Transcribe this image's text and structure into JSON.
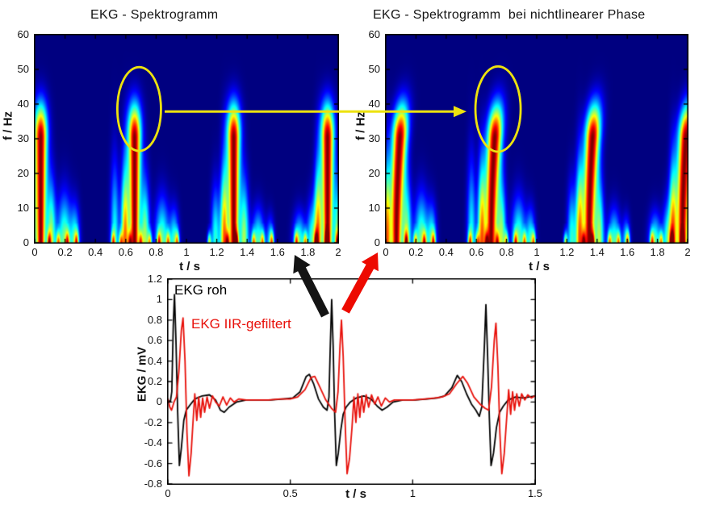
{
  "colors": {
    "highlight_yellow": "#EDE20E",
    "arrow_black": "#141414",
    "arrow_red": "#ED0A00",
    "series_black": "#000000",
    "series_red": "#E8100A",
    "spectrogram_background": "#00008C",
    "axis": "#000000"
  },
  "chart_data": [
    {
      "id": "spectrogram_left",
      "type": "heatmap",
      "title": "EKG - Spektrogramm",
      "xlabel": "t / s",
      "ylabel": "f / Hz",
      "xlim": [
        0,
        2
      ],
      "ylim": [
        0,
        60
      ],
      "xticks": [
        "0",
        "0.2",
        "0.4",
        "0.6",
        "0.8",
        "1",
        "1.2",
        "1.4",
        "1.6",
        "1.8",
        "2"
      ],
      "yticks": [
        "0",
        "10",
        "20",
        "30",
        "40",
        "50",
        "60"
      ],
      "colormap": "jet",
      "bend": 0,
      "core_width_scale": 1,
      "pulses": [
        {
          "t": 0.045,
          "amp": 1.0
        },
        {
          "t": 0.66,
          "amp": 1.0
        },
        {
          "t": 1.31,
          "amp": 1.0
        },
        {
          "t": 1.925,
          "amp": 1.0
        }
      ],
      "blobs": [
        {
          "t": 0.2,
          "w": 0.045,
          "f": 13,
          "a": 0.5
        },
        {
          "t": 0.27,
          "w": 0.03,
          "f": 10,
          "a": 0.42
        },
        {
          "t": 0.53,
          "w": 0.028,
          "f": 22,
          "a": 0.4
        },
        {
          "t": 0.84,
          "w": 0.045,
          "f": 12,
          "a": 0.48
        },
        {
          "t": 0.92,
          "w": 0.03,
          "f": 9,
          "a": 0.42
        },
        {
          "t": 1.19,
          "w": 0.028,
          "f": 15,
          "a": 0.42
        },
        {
          "t": 1.47,
          "w": 0.04,
          "f": 9,
          "a": 0.45
        },
        {
          "t": 1.55,
          "w": 0.025,
          "f": 7,
          "a": 0.35
        },
        {
          "t": 1.74,
          "w": 0.04,
          "f": 8,
          "a": 0.45
        },
        {
          "t": 1.82,
          "w": 0.03,
          "f": 11,
          "a": 0.4
        }
      ],
      "grass": [
        0.1,
        0.16,
        0.22,
        0.28,
        0.52,
        0.57,
        0.63,
        0.7,
        0.76,
        0.82,
        0.88,
        0.94,
        1.15,
        1.27,
        1.33,
        1.44,
        1.5,
        1.56,
        1.72,
        1.78,
        1.85,
        1.92,
        1.99
      ]
    },
    {
      "id": "spectrogram_right",
      "type": "heatmap",
      "title": "EKG - Spektrogramm  bei nichtlinearer Phase",
      "xlabel": "t / s",
      "ylabel": "f / Hz",
      "xlim": [
        0,
        2
      ],
      "ylim": [
        0,
        60
      ],
      "xticks": [
        "0",
        "0.2",
        "0.4",
        "0.6",
        "0.8",
        "1",
        "1.2",
        "1.4",
        "1.6",
        "1.8",
        "2"
      ],
      "yticks": [
        "0",
        "10",
        "20",
        "30",
        "40",
        "50",
        "60"
      ],
      "colormap": "jet",
      "bend": 0.05,
      "core_width_scale": 1.15,
      "pulses": [
        {
          "t": 0.075,
          "amp": 1.0
        },
        {
          "t": 0.7,
          "amp": 1.0
        },
        {
          "t": 1.345,
          "amp": 1.0
        },
        {
          "t": 1.96,
          "amp": 1.0
        }
      ],
      "blobs": [
        {
          "t": 0.24,
          "w": 0.045,
          "f": 13,
          "a": 0.5
        },
        {
          "t": 0.31,
          "w": 0.03,
          "f": 10,
          "a": 0.42
        },
        {
          "t": 0.57,
          "w": 0.028,
          "f": 22,
          "a": 0.4
        },
        {
          "t": 0.88,
          "w": 0.045,
          "f": 12,
          "a": 0.48
        },
        {
          "t": 0.96,
          "w": 0.03,
          "f": 9,
          "a": 0.42
        },
        {
          "t": 1.23,
          "w": 0.028,
          "f": 15,
          "a": 0.42
        },
        {
          "t": 1.51,
          "w": 0.04,
          "f": 9,
          "a": 0.45
        },
        {
          "t": 1.59,
          "w": 0.025,
          "f": 7,
          "a": 0.35
        },
        {
          "t": 1.78,
          "w": 0.04,
          "f": 8,
          "a": 0.45
        },
        {
          "t": 1.86,
          "w": 0.03,
          "f": 11,
          "a": 0.4
        }
      ],
      "grass": [
        0.14,
        0.2,
        0.26,
        0.32,
        0.56,
        0.61,
        0.67,
        0.74,
        0.8,
        0.86,
        0.92,
        0.98,
        1.19,
        1.31,
        1.37,
        1.48,
        1.54,
        1.6,
        1.76,
        1.82,
        1.89,
        1.96
      ]
    },
    {
      "id": "ekg_waveforms",
      "type": "line",
      "title": "",
      "xlabel": "t / s",
      "ylabel": "EKG / mV",
      "xlim": [
        0,
        1.5
      ],
      "ylim": [
        -0.8,
        1.2
      ],
      "xticks": [
        "0",
        "0.5",
        "1",
        "1.5"
      ],
      "yticks": [
        "-0.8",
        "-0.6",
        "-0.4",
        "-0.2",
        "0",
        "0.2",
        "0.4",
        "0.6",
        "0.8",
        "1",
        "1.2"
      ],
      "series": [
        {
          "name": "EKG roh",
          "color": "#000000",
          "points": [
            [
              0.0,
              0.02
            ],
            [
              0.01,
              0.0
            ],
            [
              0.016,
              0.1
            ],
            [
              0.022,
              0.75
            ],
            [
              0.027,
              1.05
            ],
            [
              0.033,
              0.6
            ],
            [
              0.04,
              -0.1
            ],
            [
              0.047,
              -0.62
            ],
            [
              0.055,
              -0.45
            ],
            [
              0.065,
              -0.18
            ],
            [
              0.075,
              -0.08
            ],
            [
              0.09,
              -0.03
            ],
            [
              0.11,
              0.03
            ],
            [
              0.14,
              0.06
            ],
            [
              0.17,
              0.07
            ],
            [
              0.195,
              0.02
            ],
            [
              0.215,
              -0.08
            ],
            [
              0.23,
              -0.1
            ],
            [
              0.25,
              -0.05
            ],
            [
              0.28,
              0.0
            ],
            [
              0.32,
              0.02
            ],
            [
              0.37,
              0.02
            ],
            [
              0.42,
              0.02
            ],
            [
              0.47,
              0.03
            ],
            [
              0.51,
              0.04
            ],
            [
              0.54,
              0.1
            ],
            [
              0.565,
              0.25
            ],
            [
              0.578,
              0.27
            ],
            [
              0.595,
              0.18
            ],
            [
              0.615,
              0.03
            ],
            [
              0.635,
              -0.05
            ],
            [
              0.65,
              -0.08
            ],
            [
              0.658,
              0.05
            ],
            [
              0.664,
              0.6
            ],
            [
              0.669,
              1.0
            ],
            [
              0.675,
              0.55
            ],
            [
              0.681,
              -0.1
            ],
            [
              0.688,
              -0.62
            ],
            [
              0.696,
              -0.5
            ],
            [
              0.706,
              -0.28
            ],
            [
              0.716,
              -0.12
            ],
            [
              0.728,
              -0.05
            ],
            [
              0.745,
              0.0
            ],
            [
              0.77,
              0.04
            ],
            [
              0.8,
              0.06
            ],
            [
              0.83,
              0.03
            ],
            [
              0.855,
              -0.04
            ],
            [
              0.875,
              -0.08
            ],
            [
              0.895,
              -0.05
            ],
            [
              0.92,
              0.0
            ],
            [
              0.96,
              0.02
            ],
            [
              1.01,
              0.02
            ],
            [
              1.06,
              0.03
            ],
            [
              1.1,
              0.04
            ],
            [
              1.13,
              0.06
            ],
            [
              1.16,
              0.14
            ],
            [
              1.182,
              0.26
            ],
            [
              1.2,
              0.2
            ],
            [
              1.22,
              0.08
            ],
            [
              1.24,
              -0.02
            ],
            [
              1.258,
              -0.08
            ],
            [
              1.272,
              -0.14
            ],
            [
              1.282,
              -0.05
            ],
            [
              1.292,
              0.5
            ],
            [
              1.299,
              0.95
            ],
            [
              1.306,
              0.45
            ],
            [
              1.313,
              -0.15
            ],
            [
              1.32,
              -0.62
            ],
            [
              1.33,
              -0.5
            ],
            [
              1.342,
              -0.25
            ],
            [
              1.355,
              -0.1
            ],
            [
              1.37,
              -0.04
            ],
            [
              1.39,
              0.02
            ],
            [
              1.42,
              0.05
            ],
            [
              1.45,
              0.04
            ],
            [
              1.475,
              0.05
            ],
            [
              1.5,
              0.06
            ]
          ]
        },
        {
          "name": "EKG IIR-gefiltert",
          "color": "#E8100A",
          "points": [
            [
              0.0,
              0.03
            ],
            [
              0.008,
              -0.05
            ],
            [
              0.015,
              -0.08
            ],
            [
              0.025,
              0.0
            ],
            [
              0.035,
              0.05
            ],
            [
              0.045,
              0.3
            ],
            [
              0.055,
              0.7
            ],
            [
              0.062,
              0.82
            ],
            [
              0.07,
              0.4
            ],
            [
              0.078,
              -0.3
            ],
            [
              0.086,
              -0.72
            ],
            [
              0.095,
              -0.5
            ],
            [
              0.103,
              -0.18
            ],
            [
              0.11,
              0.08
            ],
            [
              0.118,
              -0.18
            ],
            [
              0.126,
              0.05
            ],
            [
              0.134,
              -0.15
            ],
            [
              0.142,
              0.04
            ],
            [
              0.15,
              -0.1
            ],
            [
              0.16,
              0.05
            ],
            [
              0.17,
              -0.06
            ],
            [
              0.182,
              0.06
            ],
            [
              0.195,
              0.0
            ],
            [
              0.21,
              -0.04
            ],
            [
              0.225,
              0.05
            ],
            [
              0.24,
              -0.03
            ],
            [
              0.255,
              0.04
            ],
            [
              0.27,
              0.0
            ],
            [
              0.29,
              0.03
            ],
            [
              0.32,
              0.02
            ],
            [
              0.36,
              0.02
            ],
            [
              0.41,
              0.02
            ],
            [
              0.46,
              0.03
            ],
            [
              0.5,
              0.03
            ],
            [
              0.53,
              0.05
            ],
            [
              0.56,
              0.12
            ],
            [
              0.585,
              0.24
            ],
            [
              0.6,
              0.25
            ],
            [
              0.62,
              0.15
            ],
            [
              0.645,
              0.02
            ],
            [
              0.668,
              -0.06
            ],
            [
              0.685,
              -0.1
            ],
            [
              0.695,
              0.1
            ],
            [
              0.703,
              0.55
            ],
            [
              0.709,
              0.8
            ],
            [
              0.716,
              0.45
            ],
            [
              0.724,
              -0.2
            ],
            [
              0.732,
              -0.7
            ],
            [
              0.742,
              -0.55
            ],
            [
              0.752,
              -0.25
            ],
            [
              0.76,
              0.05
            ],
            [
              0.768,
              -0.2
            ],
            [
              0.776,
              0.08
            ],
            [
              0.784,
              -0.15
            ],
            [
              0.792,
              0.06
            ],
            [
              0.8,
              -0.1
            ],
            [
              0.81,
              0.07
            ],
            [
              0.82,
              -0.05
            ],
            [
              0.832,
              0.07
            ],
            [
              0.845,
              -0.02
            ],
            [
              0.858,
              0.05
            ],
            [
              0.872,
              -0.04
            ],
            [
              0.888,
              0.04
            ],
            [
              0.905,
              0.0
            ],
            [
              0.925,
              0.02
            ],
            [
              0.955,
              0.02
            ],
            [
              1.0,
              0.02
            ],
            [
              1.05,
              0.03
            ],
            [
              1.09,
              0.04
            ],
            [
              1.12,
              0.05
            ],
            [
              1.15,
              0.08
            ],
            [
              1.18,
              0.18
            ],
            [
              1.205,
              0.25
            ],
            [
              1.225,
              0.18
            ],
            [
              1.25,
              0.05
            ],
            [
              1.275,
              -0.02
            ],
            [
              1.295,
              -0.06
            ],
            [
              1.31,
              -0.08
            ],
            [
              1.322,
              0.15
            ],
            [
              1.333,
              0.6
            ],
            [
              1.34,
              0.77
            ],
            [
              1.348,
              0.35
            ],
            [
              1.356,
              -0.3
            ],
            [
              1.364,
              -0.7
            ],
            [
              1.374,
              -0.5
            ],
            [
              1.384,
              -0.15
            ],
            [
              1.392,
              0.12
            ],
            [
              1.4,
              -0.12
            ],
            [
              1.408,
              0.1
            ],
            [
              1.416,
              -0.08
            ],
            [
              1.425,
              0.08
            ],
            [
              1.435,
              -0.04
            ],
            [
              1.445,
              0.08
            ],
            [
              1.458,
              0.02
            ],
            [
              1.47,
              0.07
            ],
            [
              1.485,
              0.04
            ],
            [
              1.5,
              0.06
            ]
          ]
        }
      ]
    }
  ],
  "annotations": {
    "ellipse_left": {
      "t": 0.69,
      "f": 38.5,
      "rt": 0.143,
      "rf": 12.0
    },
    "ellipse_right": {
      "t": 0.745,
      "f": 38.5,
      "rt": 0.149,
      "rf": 12.2
    },
    "transfer_arrow": {
      "f": 37.8,
      "from_t": 0.857,
      "to_t": 0.537
    },
    "source_arrows": [
      {
        "name": "raw-to-left-spectrogram-arrow",
        "color_key": "arrow_black"
      },
      {
        "name": "filtered-to-right-spectrogram-arrow",
        "color_key": "arrow_red"
      }
    ]
  }
}
